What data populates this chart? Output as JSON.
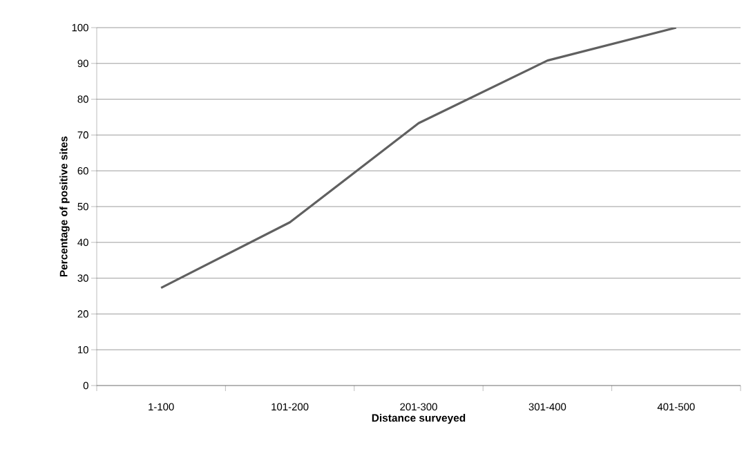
{
  "chart_data": {
    "type": "line",
    "xlabel": "Distance surveyed",
    "ylabel": "Percentage of positive sites",
    "categories": [
      "1-100",
      "101-200",
      "201-300",
      "301-400",
      "401-500"
    ],
    "series": [
      {
        "color": "#606060",
        "values": [
          27.3,
          45.6,
          73.3,
          90.8,
          100
        ]
      }
    ],
    "ylim": [
      0,
      100
    ],
    "yticks": [
      0,
      10,
      20,
      30,
      40,
      50,
      60,
      70,
      80,
      90,
      100
    ],
    "grid": "y",
    "marker": "none",
    "line_style": "solid"
  }
}
